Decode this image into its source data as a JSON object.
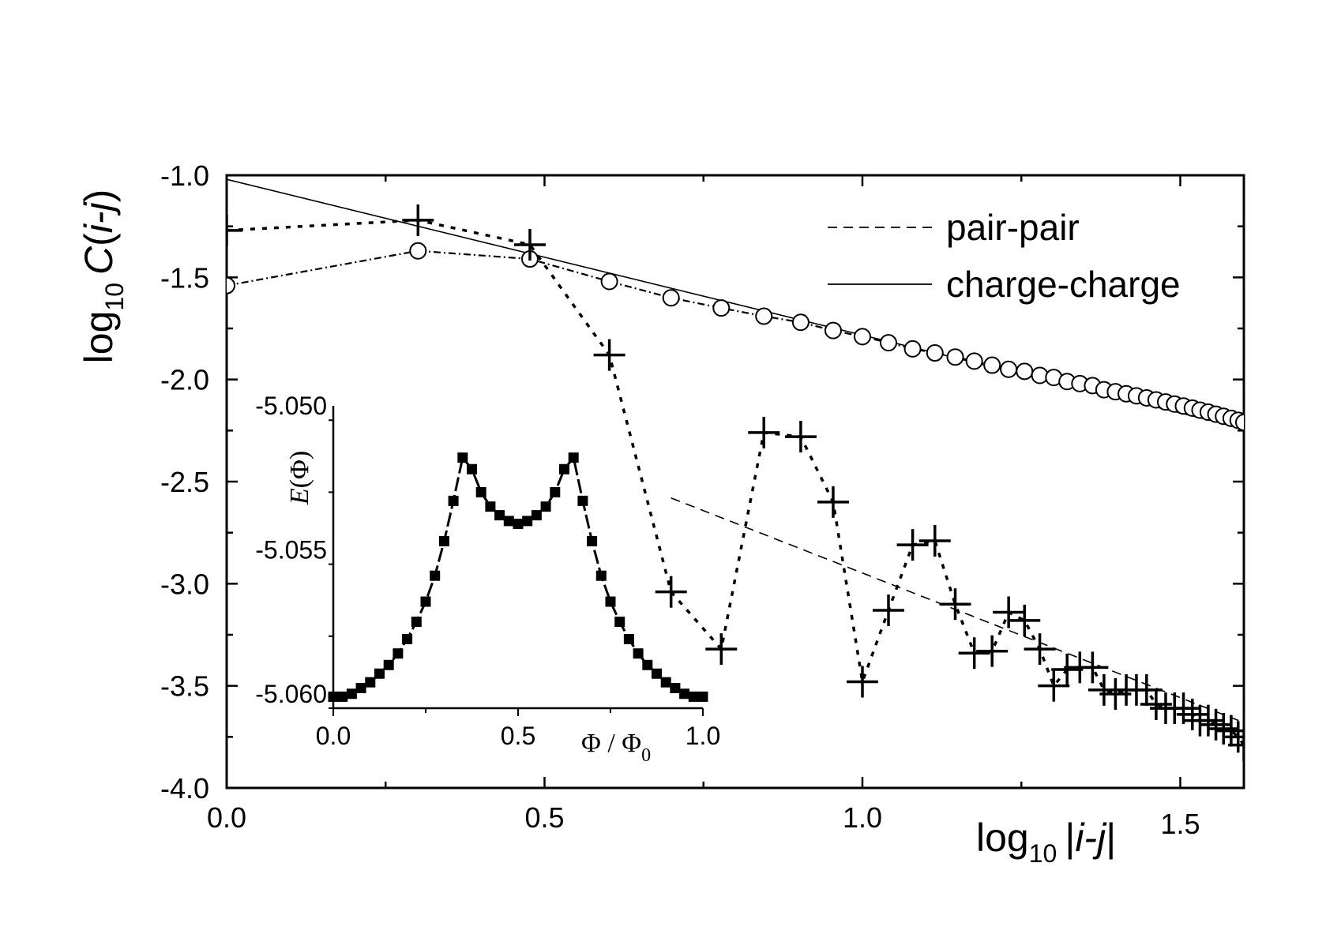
{
  "chart_data": [
    {
      "type": "scatter",
      "xlabel_prefix": "log",
      "xlabel_sub": "10",
      "xlabel_arg": "|i-j|",
      "ylabel_prefix": "log",
      "ylabel_sub": "10",
      "ylabel_func": "C",
      "ylabel_arg": "(i-j)",
      "xlim": [
        0.0,
        1.6
      ],
      "ylim": [
        -4.0,
        -1.0
      ],
      "xticks": [
        {
          "value": 0.0,
          "label": "0.0"
        },
        {
          "value": 0.5,
          "label": "0.5"
        },
        {
          "value": 1.0,
          "label": "1.0"
        },
        {
          "value": 1.5,
          "label": "1.5"
        }
      ],
      "yticks": [
        {
          "value": -1.0,
          "label": "-1.0"
        },
        {
          "value": -1.5,
          "label": "-1.5"
        },
        {
          "value": -2.0,
          "label": "-2.0"
        },
        {
          "value": -2.5,
          "label": "-2.5"
        },
        {
          "value": -3.0,
          "label": "-3.0"
        },
        {
          "value": -3.5,
          "label": "-3.5"
        },
        {
          "value": -4.0,
          "label": "-4.0"
        }
      ],
      "legend": {
        "placement": "top-right",
        "entries": [
          {
            "label": "pair-pair",
            "style": "dashed"
          },
          {
            "label": "charge-charge",
            "style": "solid"
          }
        ]
      },
      "series": [
        {
          "marker": "plus",
          "line": "dotted",
          "points": [
            [
              0.0,
              -1.27
            ],
            [
              0.301,
              -1.22
            ],
            [
              0.477,
              -1.34
            ],
            [
              0.602,
              -1.88
            ],
            [
              0.699,
              -3.04
            ],
            [
              0.778,
              -3.32
            ],
            [
              0.845,
              -2.26
            ],
            [
              0.903,
              -2.28
            ],
            [
              0.954,
              -2.6
            ],
            [
              1.0,
              -3.48
            ],
            [
              1.041,
              -3.13
            ],
            [
              1.079,
              -2.81
            ],
            [
              1.114,
              -2.79
            ],
            [
              1.146,
              -3.1
            ],
            [
              1.176,
              -3.34
            ],
            [
              1.204,
              -3.33
            ],
            [
              1.23,
              -3.14
            ],
            [
              1.255,
              -3.18
            ],
            [
              1.279,
              -3.32
            ],
            [
              1.301,
              -3.5
            ],
            [
              1.322,
              -3.42
            ],
            [
              1.342,
              -3.41
            ],
            [
              1.362,
              -3.41
            ],
            [
              1.38,
              -3.52
            ],
            [
              1.398,
              -3.54
            ],
            [
              1.415,
              -3.52
            ],
            [
              1.431,
              -3.52
            ],
            [
              1.447,
              -3.52
            ],
            [
              1.462,
              -3.59
            ],
            [
              1.477,
              -3.61
            ],
            [
              1.491,
              -3.61
            ],
            [
              1.505,
              -3.61
            ],
            [
              1.519,
              -3.64
            ],
            [
              1.531,
              -3.67
            ],
            [
              1.544,
              -3.67
            ],
            [
              1.556,
              -3.69
            ],
            [
              1.568,
              -3.71
            ],
            [
              1.58,
              -3.72
            ],
            [
              1.591,
              -3.75
            ],
            [
              1.6,
              -3.79
            ]
          ]
        },
        {
          "marker": "open-circle",
          "line": "dash-dot",
          "points": [
            [
              0.0,
              -1.54
            ],
            [
              0.301,
              -1.37
            ],
            [
              0.477,
              -1.41
            ],
            [
              0.602,
              -1.52
            ],
            [
              0.699,
              -1.6
            ],
            [
              0.778,
              -1.65
            ],
            [
              0.845,
              -1.69
            ],
            [
              0.903,
              -1.72
            ],
            [
              0.954,
              -1.76
            ],
            [
              1.0,
              -1.79
            ],
            [
              1.041,
              -1.82
            ],
            [
              1.079,
              -1.85
            ],
            [
              1.114,
              -1.87
            ],
            [
              1.146,
              -1.89
            ],
            [
              1.176,
              -1.91
            ],
            [
              1.204,
              -1.93
            ],
            [
              1.23,
              -1.95
            ],
            [
              1.255,
              -1.96
            ],
            [
              1.279,
              -1.98
            ],
            [
              1.301,
              -1.99
            ],
            [
              1.322,
              -2.01
            ],
            [
              1.342,
              -2.02
            ],
            [
              1.362,
              -2.03
            ],
            [
              1.38,
              -2.05
            ],
            [
              1.398,
              -2.06
            ],
            [
              1.415,
              -2.07
            ],
            [
              1.431,
              -2.08
            ],
            [
              1.447,
              -2.09
            ],
            [
              1.462,
              -2.1
            ],
            [
              1.477,
              -2.11
            ],
            [
              1.491,
              -2.12
            ],
            [
              1.505,
              -2.13
            ],
            [
              1.519,
              -2.14
            ],
            [
              1.531,
              -2.15
            ],
            [
              1.544,
              -2.16
            ],
            [
              1.556,
              -2.17
            ],
            [
              1.568,
              -2.18
            ],
            [
              1.58,
              -2.19
            ],
            [
              1.591,
              -2.2
            ],
            [
              1.6,
              -2.21
            ]
          ]
        },
        {
          "line": "solid",
          "points": [
            [
              0.0,
              -1.02
            ],
            [
              1.6,
              -2.24
            ]
          ]
        },
        {
          "line": "dashed",
          "points": [
            [
              0.699,
              -2.58
            ],
            [
              1.6,
              -3.68
            ]
          ]
        }
      ]
    },
    {
      "type": "line",
      "xlabel": "Φ / Φ",
      "xlabel_sub": "0",
      "ylabel": "E(Φ)",
      "xlim": [
        0.0,
        1.0
      ],
      "ylim": [
        -5.0605,
        -5.05
      ],
      "xticks": [
        {
          "value": 0.0,
          "label": "0.0"
        },
        {
          "value": 0.5,
          "label": "0.5"
        },
        {
          "value": 1.0,
          "label": "1.0"
        }
      ],
      "yticks": [
        {
          "value": -5.05,
          "label": "-5.050"
        },
        {
          "value": -5.055,
          "label": "-5.055"
        },
        {
          "value": -5.06,
          "label": "-5.060"
        }
      ],
      "series": [
        {
          "marker": "filled-square",
          "line": "dashed",
          "x": [
            0.0,
            0.025,
            0.05,
            0.075,
            0.1,
            0.125,
            0.15,
            0.175,
            0.2,
            0.225,
            0.25,
            0.275,
            0.3,
            0.325,
            0.35,
            0.375,
            0.4,
            0.425,
            0.45,
            0.475,
            0.5,
            0.525,
            0.55,
            0.575,
            0.6,
            0.625,
            0.65,
            0.675,
            0.7,
            0.725,
            0.75,
            0.775,
            0.8,
            0.825,
            0.85,
            0.875,
            0.9,
            0.925,
            0.95,
            0.975,
            1.0
          ],
          "y": [
            -5.0601,
            -5.0601,
            -5.06,
            -5.0598,
            -5.0596,
            -5.0593,
            -5.059,
            -5.0586,
            -5.0581,
            -5.0575,
            -5.0568,
            -5.0559,
            -5.0547,
            -5.0533,
            -5.0518,
            -5.0522,
            -5.053,
            -5.0535,
            -5.0538,
            -5.054,
            -5.0541,
            -5.054,
            -5.0538,
            -5.0535,
            -5.053,
            -5.0522,
            -5.0518,
            -5.0533,
            -5.0547,
            -5.0559,
            -5.0568,
            -5.0575,
            -5.0581,
            -5.0586,
            -5.059,
            -5.0593,
            -5.0596,
            -5.0598,
            -5.06,
            -5.0601,
            -5.0601
          ]
        }
      ]
    }
  ]
}
